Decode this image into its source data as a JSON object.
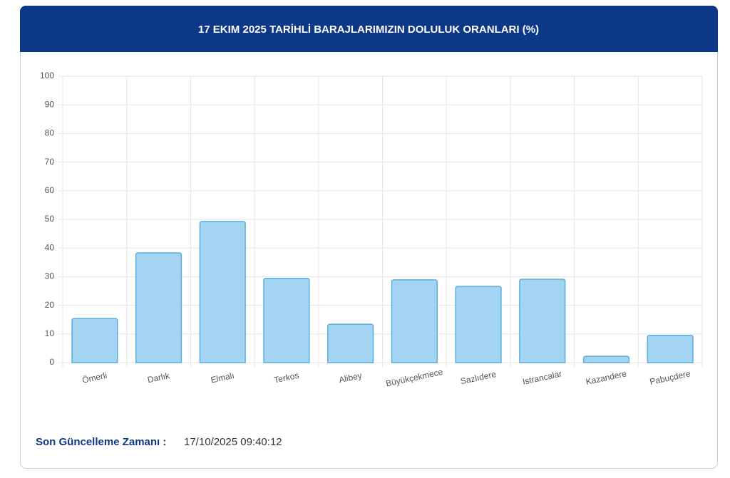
{
  "chart_data": {
    "type": "bar",
    "title": "17 EKIM 2025 TARİHLİ BARAJLARIMIZIN DOLULUK ORANLARI (%)",
    "categories": [
      "Ömerli",
      "Darlık",
      "Elmalı",
      "Terkos",
      "Alibey",
      "Büyükçekmece",
      "Sazlıdere",
      "Istrancalar",
      "Kazandere",
      "Pabuçdere"
    ],
    "values": [
      15.4,
      38.3,
      49.3,
      29.4,
      13.4,
      28.9,
      26.6,
      29.1,
      2.2,
      9.5
    ],
    "color": "#a3d4f1",
    "ylim": [
      0,
      100
    ],
    "yticks": [
      0,
      10,
      20,
      30,
      40,
      50,
      60,
      70,
      80,
      90,
      100
    ],
    "grid": true,
    "footer_label": "Son Güncelleme Zamanı :",
    "footer_value": "17/10/2025 09:40:12"
  }
}
